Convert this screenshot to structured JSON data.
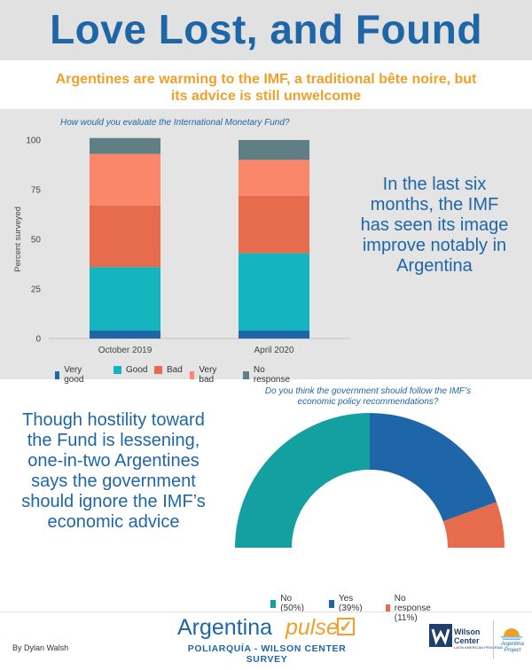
{
  "header": {
    "title": "Love Lost, and Found",
    "subtitle": "Argentines are warming to the IMF, a traditional bête noire, but its advice is still unwelcome"
  },
  "callouts": {
    "top": "In the last six months, the IMF has seen its image improve notably in Argentina",
    "bottom": "Though hostility toward the Fund is lessening, one-in-two Argentines says the government should ignore the IMF’s economic advice"
  },
  "chart_data": [
    {
      "type": "bar",
      "stacked": true,
      "title": "How would you evaluate the International Monetary Fund?",
      "categories": [
        "October 2019",
        "April 2020"
      ],
      "series": [
        {
          "name": "Very good",
          "color": "#1e66a8",
          "values": [
            4,
            4
          ]
        },
        {
          "name": "Good",
          "color": "#14b5bf",
          "values": [
            32,
            39
          ]
        },
        {
          "name": "Bad",
          "color": "#e66c4d",
          "values": [
            31,
            29
          ]
        },
        {
          "name": "Very bad",
          "color": "#fb876b",
          "values": [
            26,
            18
          ]
        },
        {
          "name": "No response",
          "color": "#5f7f85",
          "values": [
            8,
            10
          ]
        }
      ],
      "ylabel": "Percent surveyed",
      "yticks": [
        0,
        25,
        50,
        75,
        100
      ],
      "ylim": [
        0,
        100
      ],
      "legend": "bottom"
    },
    {
      "type": "pie",
      "subtype": "half-donut",
      "title": "Do you think the government should follow the IMF’s economic policy recommendations?",
      "slices": [
        {
          "label": "No",
          "legend": "No (50%)",
          "value": 50,
          "color": "#14a0a0"
        },
        {
          "label": "Yes",
          "legend": "Yes (39%)",
          "value": 39,
          "color": "#1e66a8"
        },
        {
          "label": "No response",
          "legend": "No response (11%)",
          "value": 11,
          "color": "#e66c4d"
        }
      ],
      "legend": "bottom"
    }
  ],
  "footer": {
    "byline": "By Dylan Walsh",
    "brand_main": "Argentina",
    "brand_accent": "pulse",
    "brand_sub": "POLIARQUÍA - WILSON CENTER SURVEY",
    "wilson_name_1": "Wilson",
    "wilson_name_2": "Center",
    "wilson_program": "LATIN AMERICAN PROGRAM",
    "project_1": "Argentina",
    "project_2": "Project"
  }
}
